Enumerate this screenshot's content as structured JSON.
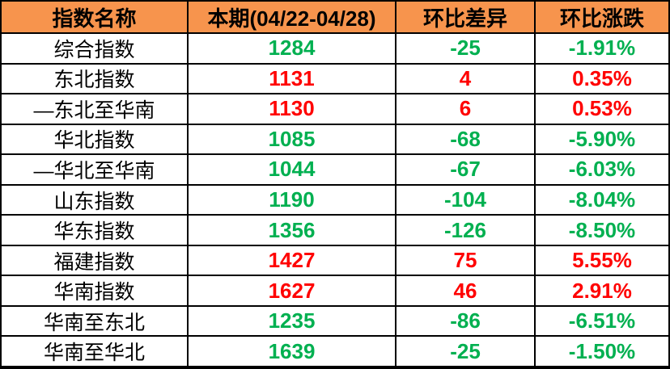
{
  "chart_data": {
    "type": "table",
    "title": "",
    "columns": [
      "指数名称",
      "本期(04/22-04/28)",
      "环比差异",
      "环比涨跌"
    ],
    "rows": [
      [
        "综合指数",
        "1284",
        "-25",
        "-1.91%"
      ],
      [
        "东北指数",
        "1131",
        "4",
        "0.35%"
      ],
      [
        "—东北至华南",
        "1130",
        "6",
        "0.53%"
      ],
      [
        "华北指数",
        "1085",
        "-68",
        "-5.90%"
      ],
      [
        "—华北至华南",
        "1044",
        "-67",
        "-6.03%"
      ],
      [
        "山东指数",
        "1190",
        "-104",
        "-8.04%"
      ],
      [
        "华东指数",
        "1356",
        "-126",
        "-8.50%"
      ],
      [
        "福建指数",
        "1427",
        "75",
        "5.55%"
      ],
      [
        "华南指数",
        "1627",
        "46",
        "2.91%"
      ],
      [
        "华南至东北",
        "1235",
        "-86",
        "-6.51%"
      ],
      [
        "华南至华北",
        "1639",
        "-25",
        "-1.50%"
      ]
    ],
    "legend_position": "none",
    "grid": true,
    "color_coding": "positive change red, negative change green"
  },
  "table": {
    "colors": {
      "header_bg": "#F7944D",
      "header_text": "#000000",
      "up": "#FF0000",
      "down": "#00B050",
      "border": "#000000",
      "name_text": "#000000"
    }
  }
}
